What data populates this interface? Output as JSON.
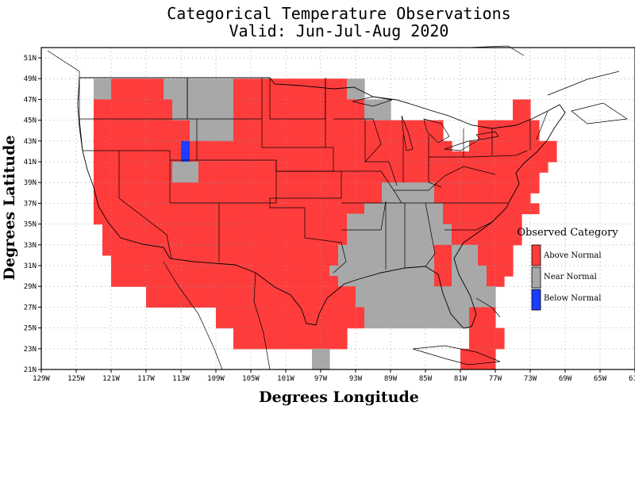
{
  "header": {
    "title": "Categorical Temperature Observations",
    "subtitle": "Valid: Jun-Jul-Aug 2020"
  },
  "axes": {
    "xlabel": "Degrees Longitude",
    "ylabel": "Degrees Latitude",
    "x_ticks": [
      "129W",
      "125W",
      "121W",
      "117W",
      "113W",
      "109W",
      "105W",
      "101W",
      "97W",
      "93W",
      "89W",
      "85W",
      "81W",
      "77W",
      "73W",
      "69W",
      "65W",
      "61W"
    ],
    "y_ticks": [
      "21N",
      "23N",
      "25N",
      "27N",
      "29N",
      "31N",
      "33N",
      "35N",
      "37N",
      "39N",
      "41N",
      "43N",
      "45N",
      "47N",
      "49N",
      "51N"
    ],
    "lon_range": [
      -129,
      -61
    ],
    "lat_range": [
      21,
      52
    ],
    "grid": true
  },
  "legend": {
    "title": "Observed Category",
    "placement": "right",
    "items": [
      {
        "key": "A",
        "label": "Above Normal",
        "color": "#ff3c3c"
      },
      {
        "key": "N",
        "label": "Near Normal",
        "color": "#a8a8a8"
      },
      {
        "key": "B",
        "label": "Below Normal",
        "color": "#1c3cff"
      }
    ]
  },
  "map_data": {
    "cell_lon_deg": 2,
    "cell_lat_deg": 2,
    "west_lon": -125,
    "north_lat": 49,
    "rows": [
      "..NNAAAAAANNNNNNNNAAAAAAAAAAAAANN.........",
      "..NNAAAAAANNNNNNNNAAAAAAAAAAAAANN.........",
      "..AAAAAAAAANNNNNNNAAAAAAAAAAAAAAANNN..............AA..",
      "..AAAAAAAAANNNNNNNAAAAAAAAAAAAAAANNN..............AA..",
      "..AAAAAAAAAAANNNNNAAAAAAAAAAAAAAAAAAAAAAAA....AAAAAAA..",
      "..AAAAAAAAAAANNNNNAAAAAAAAAAAAAAAAAAAAAAAA....AAAAAAA..",
      "..AAAAAAAAAABAAAAAAAAAAAAAAAAAAAAAAAAAAAAAA..AAAAAAAAAA",
      "..AAAAAAAAAABAAAAAAAAAAAAAAAAAAAAAAAAAAAAAAAAAAAAAAAAAA",
      "..AAAAAAAAANNNAAAAAAAAAAAAAAAAAAAAAAAAAAAAAAAAAAAAAAAA",
      "..AAAAAAAAANNNAAAAAAAAAAAAAAAAAAAAAAAAAAAAAAAAAAAAAAA.",
      "..AAAAAAAAAAAAAAAAAAAAAAAAAAAAAAAAANNNNNNAAAAAAAAAAAA..",
      "..AAAAAAAAAAAAAAAAAAAAAAAAAAAAAAAAANNNNNNAAAAAAAAAAA...",
      "..AAAAAAAAAAAAAAAAAAAAAAAAAAAAAAANNNNNNNNNAAAAAAAAAAA..",
      "..AAAAAAAAAAAAAAAAAAAAAAAAAAAAANNNNNNNNNNNAAAAAAAAA....",
      "...AAAAAAAAAAAAAAAAAAAAAAAAAAAANNNNNNNNNNNNAAAAAAAA....",
      "...AAAAAAAAAAAAAAAAAAAAAAAAAAAANNNNNNNNNNNNAAAAAAAA....",
      "...AAAAAAAAAAAAAAAAAAAAAAAAAAANNNNNNNNNNNAANNNAAAA.....",
      "....AAAAAAAAAAAAAAAAAAAAAAAAAANNNNNNNNNNNAANNNAAAA.....",
      "....AAAAAAAAAAAAAAAAAAAAAAAAANNNNNNNNNNNNAANNNNAAA.....",
      "....AAAAAAAAAAAAAAAAAAAAAAAAAANNNNNNNNNNNAANNNNAA......",
      "........AAAAAAAAAAAAAAAAAAAAAAAANNNNNNNNNNNNNNNN.......",
      "........AAAAAAAAAAAAAAAAAAAAAAAANNNNNNNNNNNNNNNN.......",
      "................AAAAAAAAAAAAAAAAANNNNNNNNNNNNAAA.......",
      "................AAAAAAAAAAAAAAAAANNNNNNNNNNNNAAA.......",
      "..................AAAAAAAAAAAAA..............AAAA......",
      "..................AAAAAAAAAAAAA..............AAAA......",
      "...........................NN...............AAAA......",
      "...........................NN...............AAAA......"
    ]
  }
}
